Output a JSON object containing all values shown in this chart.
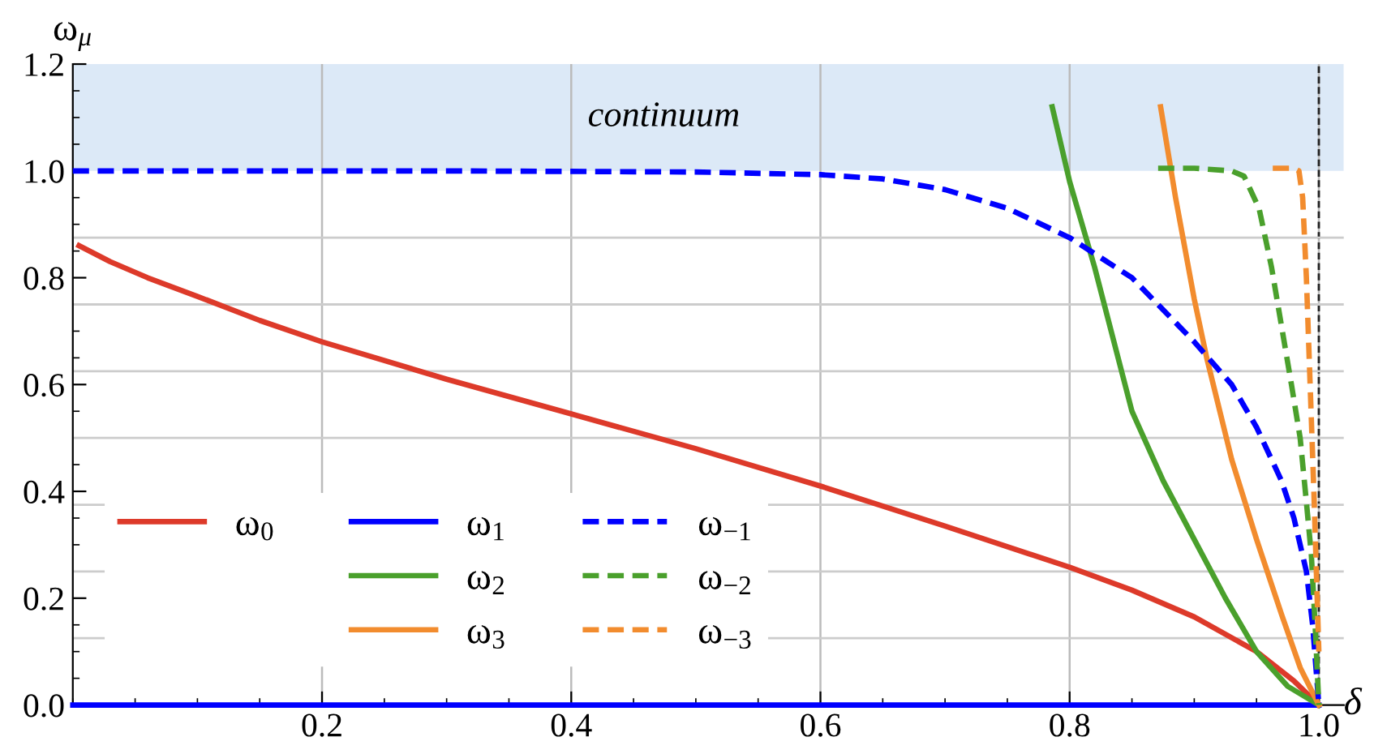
{
  "chart_data": {
    "type": "line",
    "xlabel": "δ",
    "ylabel": "ω$_{μ}$",
    "xlim": [
      0,
      1.02
    ],
    "ylim": [
      0,
      1.2
    ],
    "xticks": [
      0.2,
      0.4,
      0.6,
      0.8,
      {
        "value": 1.0,
        "label": "1.0"
      }
    ],
    "yticks": [
      {
        "value": 0,
        "label": "0.0"
      },
      0.2,
      0.4,
      0.6,
      0.8,
      {
        "value": 1.0,
        "label": "1.0"
      },
      {
        "value": 1.2,
        "label": "1.2"
      }
    ],
    "grid": "x",
    "legend": "bottom left",
    "bands": [
      {
        "axis": "y",
        "from": 1.0,
        "to": 1.2,
        "label": "continuum",
        "color": "#dce9f7"
      }
    ],
    "ref_lines": [
      {
        "axis": "x",
        "value": 1.0,
        "color": "#222222",
        "line_style": "dashed"
      },
      {
        "axis": "y",
        "value": 0.125,
        "color": "#cccccc"
      },
      {
        "axis": "y",
        "value": 0.25,
        "color": "#cccccc"
      },
      {
        "axis": "y",
        "value": 0.375,
        "color": "#cccccc"
      },
      {
        "axis": "y",
        "value": 0.5,
        "color": "#cccccc"
      },
      {
        "axis": "y",
        "value": 0.625,
        "color": "#cccccc"
      },
      {
        "axis": "y",
        "value": 0.75,
        "color": "#cccccc"
      },
      {
        "axis": "y",
        "value": 0.875,
        "color": "#cccccc"
      }
    ],
    "series": [
      {
        "name": "ω$_{0}$",
        "color": "#dd3a2a",
        "line_style": "solid",
        "x": [
          0.005,
          0.03,
          0.06,
          0.1,
          0.15,
          0.2,
          0.3,
          0.4,
          0.5,
          0.6,
          0.7,
          0.8,
          0.85,
          0.9,
          0.95,
          0.98,
          1.0
        ],
        "values": [
          0.86,
          0.83,
          0.8,
          0.765,
          0.72,
          0.68,
          0.61,
          0.545,
          0.48,
          0.41,
          0.335,
          0.258,
          0.215,
          0.165,
          0.1,
          0.045,
          0.0
        ]
      },
      {
        "name": "ω$_{1}$",
        "color": "#0000ff",
        "line_style": "solid",
        "x": [
          0.0,
          1.0
        ],
        "values": [
          0.0,
          0.0
        ]
      },
      {
        "name": "ω$_{2}$",
        "color": "#4aa02c",
        "line_style": "solid",
        "x": [
          0.786,
          0.8,
          0.82,
          0.85,
          0.875,
          0.9,
          0.925,
          0.95,
          0.975,
          1.0
        ],
        "values": [
          1.12,
          0.98,
          0.82,
          0.55,
          0.42,
          0.31,
          0.2,
          0.1,
          0.035,
          0.0
        ]
      },
      {
        "name": "ω$_{3}$",
        "color": "#f28c2e",
        "line_style": "solid",
        "x": [
          0.873,
          0.885,
          0.9,
          0.91,
          0.93,
          0.95,
          0.97,
          0.985,
          1.0
        ],
        "values": [
          1.12,
          0.95,
          0.76,
          0.65,
          0.46,
          0.31,
          0.17,
          0.07,
          0.0
        ]
      },
      {
        "name": "ω$_{−1}$",
        "color": "#0000ff",
        "line_style": "dashed",
        "x": [
          0.0,
          0.3,
          0.5,
          0.6,
          0.65,
          0.7,
          0.75,
          0.8,
          0.85,
          0.9,
          0.93,
          0.95,
          0.97,
          0.98,
          0.99,
          0.995,
          1.0
        ],
        "values": [
          1.0,
          1.0,
          0.998,
          0.993,
          0.985,
          0.965,
          0.93,
          0.875,
          0.8,
          0.68,
          0.6,
          0.52,
          0.42,
          0.35,
          0.25,
          0.15,
          0.0
        ]
      },
      {
        "name": "ω$_{−2}$",
        "color": "#4aa02c",
        "line_style": "dashed",
        "x": [
          0.871,
          0.9,
          0.93,
          0.94,
          0.952,
          0.962,
          0.97,
          0.978,
          0.985,
          0.99,
          0.994,
          0.997,
          1.0
        ],
        "values": [
          1.005,
          1.005,
          1.0,
          0.99,
          0.93,
          0.82,
          0.71,
          0.6,
          0.5,
          0.38,
          0.28,
          0.15,
          0.0
        ]
      },
      {
        "name": "ω$_{−3}$",
        "color": "#f28c2e",
        "line_style": "dashed",
        "x": [
          0.963,
          0.98,
          0.984,
          0.987,
          0.99,
          0.993,
          0.996,
          0.998,
          1.0
        ],
        "values": [
          1.005,
          1.005,
          1.0,
          0.95,
          0.8,
          0.6,
          0.4,
          0.25,
          0.1
        ]
      }
    ]
  }
}
